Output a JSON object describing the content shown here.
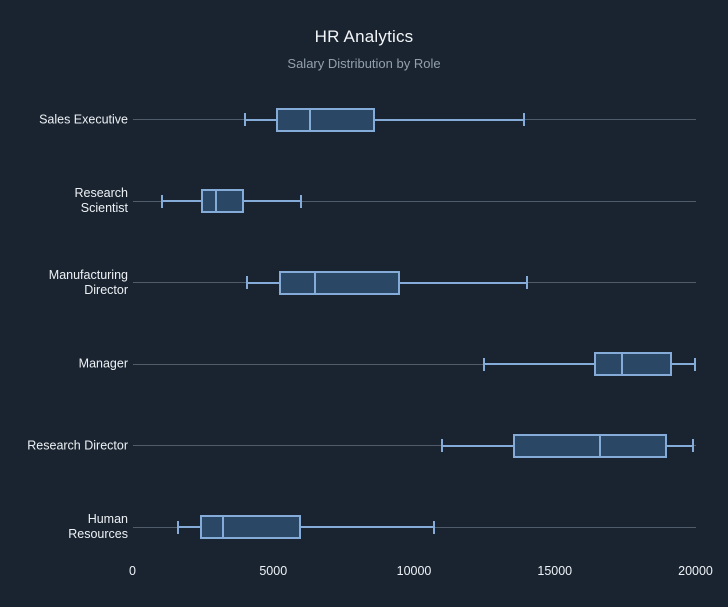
{
  "header": {
    "title": "HR Analytics",
    "subtitle": "Salary Distribution by Role"
  },
  "chart_data": {
    "type": "box",
    "orientation": "horizontal",
    "title": "HR Analytics",
    "subtitle": "Salary Distribution by Role",
    "xlabel": "",
    "ylabel": "",
    "xlim": [
      0,
      20000
    ],
    "xticks": [
      0,
      5000,
      10000,
      15000,
      20000
    ],
    "xtick_labels": [
      "0",
      "5000",
      "10000",
      "15000",
      "20000"
    ],
    "grid": false,
    "legend": "none",
    "categories": [
      "Sales Executive",
      "Research Scientist",
      "Manufacturing Director",
      "Manager",
      "Research Director",
      "Human Resources"
    ],
    "series": [
      {
        "name": "Sales Executive",
        "min": 4000,
        "q1": 5100,
        "median": 6300,
        "q3": 8600,
        "max": 13900
      },
      {
        "name": "Research Scientist",
        "min": 1050,
        "q1": 2450,
        "median": 2950,
        "q3": 3950,
        "max": 6000
      },
      {
        "name": "Manufacturing Director",
        "min": 4050,
        "q1": 5200,
        "median": 6500,
        "q3": 9500,
        "max": 14000
      },
      {
        "name": "Manager",
        "min": 12500,
        "q1": 16400,
        "median": 17400,
        "q3": 19150,
        "max": 19999
      },
      {
        "name": "Research Director",
        "min": 11000,
        "q1": 13500,
        "median": 16600,
        "q3": 19000,
        "max": 19900
      },
      {
        "name": "Human Resources",
        "min": 1600,
        "q1": 2400,
        "median": 3200,
        "q3": 6000,
        "max": 10700
      }
    ],
    "colors": {
      "background": "#1a2430",
      "box_fill": "#2b4766",
      "box_border": "#85abd9",
      "row_line": "#505c6a",
      "title_text": "#f2f5f8",
      "subtitle_text": "#93a0ac",
      "label_text": "#edf1f5"
    }
  }
}
